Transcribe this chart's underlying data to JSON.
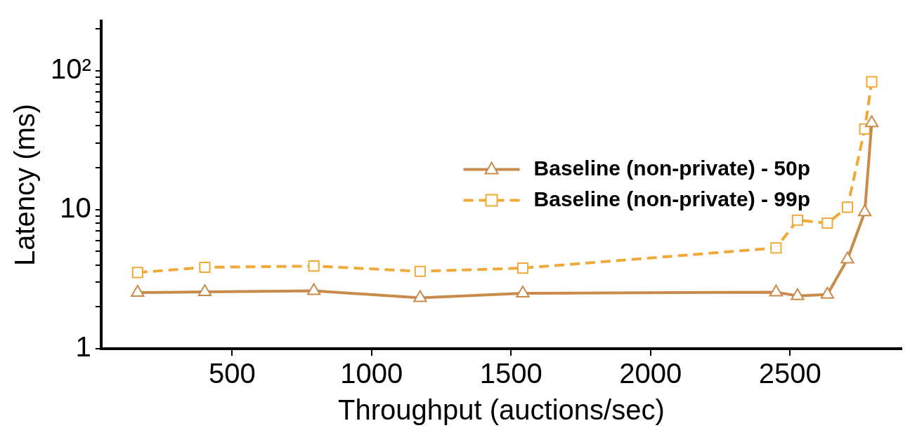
{
  "chart_data": {
    "type": "line",
    "xlabel": "Throughput (auctions/sec)",
    "ylabel": "Latency (ms)",
    "x": [
      161,
      402,
      793,
      1174,
      1542,
      2450,
      2527,
      2634,
      2706,
      2768,
      2793
    ],
    "xlim": [
      30,
      2900
    ],
    "xticks": [
      500,
      1000,
      1500,
      2000,
      2500
    ],
    "log": "y",
    "ylim": [
      1,
      227
    ],
    "yticks": [
      1,
      {
        "value": 2,
        "label": null
      },
      {
        "value": 3,
        "label": null
      },
      {
        "value": 4,
        "label": null
      },
      {
        "value": 5,
        "label": null
      },
      {
        "value": 6,
        "label": null
      },
      {
        "value": 7,
        "label": null
      },
      {
        "value": 8,
        "label": null
      },
      {
        "value": 9,
        "label": null
      },
      10,
      {
        "value": 20,
        "label": null
      },
      {
        "value": 30,
        "label": null
      },
      {
        "value": 40,
        "label": null
      },
      {
        "value": 50,
        "label": null
      },
      {
        "value": 60,
        "label": null
      },
      {
        "value": 70,
        "label": null
      },
      {
        "value": 80,
        "label": null
      },
      {
        "value": 90,
        "label": null
      },
      {
        "value": 100,
        "label": "10²"
      },
      {
        "value": 200,
        "label": null
      }
    ],
    "grid": false,
    "legend": "center right",
    "series": [
      {
        "name": "Baseline (non-private) - 50p",
        "color": "#c98b4c",
        "marker": "triangle",
        "line_style": "solid",
        "values": [
          2.53,
          2.56,
          2.61,
          2.32,
          2.5,
          2.55,
          2.4,
          2.45,
          4.4,
          9.6,
          42
        ]
      },
      {
        "name": "Baseline (non-private) - 99p",
        "color": "#f0aa3a",
        "marker": "square",
        "line_style": "dashed",
        "values": [
          3.53,
          3.85,
          3.93,
          3.6,
          3.8,
          5.3,
          8.4,
          8.0,
          10.4,
          38,
          83
        ]
      }
    ]
  }
}
